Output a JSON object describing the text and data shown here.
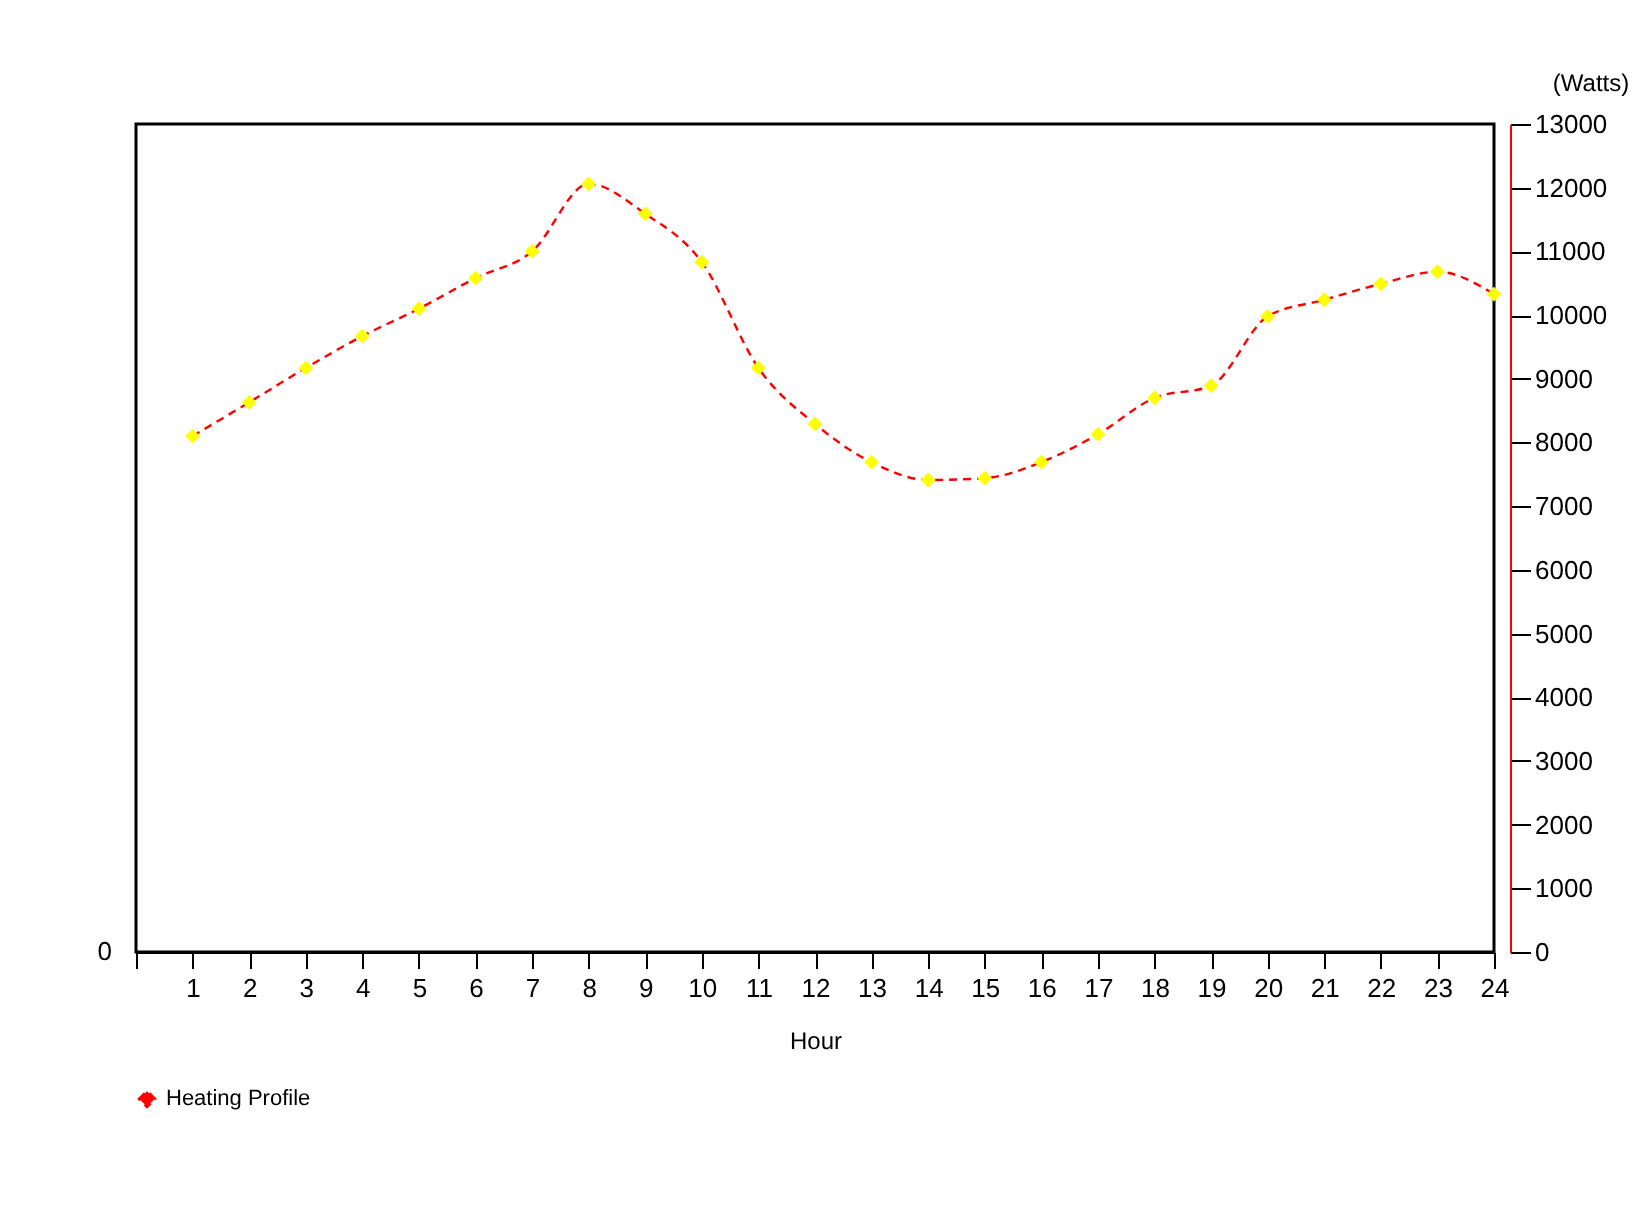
{
  "chart_data": {
    "type": "line",
    "xlabel": "Hour",
    "y2label": "(Watts)",
    "x": [
      1,
      2,
      3,
      4,
      5,
      6,
      7,
      8,
      9,
      10,
      11,
      12,
      13,
      14,
      15,
      16,
      17,
      18,
      19,
      20,
      21,
      22,
      23,
      24
    ],
    "series": [
      {
        "name": "Heating Profile",
        "color": "#ff0000",
        "axis": "y2",
        "values": [
          8100,
          8630,
          9170,
          9670,
          10100,
          10580,
          11000,
          12060,
          11590,
          10830,
          9170,
          8290,
          7690,
          7410,
          7440,
          7690,
          8130,
          8700,
          8890,
          9980,
          10240,
          10490,
          10680,
          10330
        ]
      }
    ],
    "xlim": [
      0,
      24
    ],
    "xticks": [
      {
        "value": 0,
        "label": null
      },
      1,
      2,
      3,
      4,
      5,
      6,
      7,
      8,
      9,
      10,
      11,
      12,
      13,
      14,
      15,
      16,
      17,
      18,
      19,
      20,
      21,
      22,
      23,
      24
    ],
    "annotations": [
      "0"
    ],
    "y2lim": [
      0,
      13000
    ],
    "y2ticks": [
      0,
      1000,
      2000,
      3000,
      4000,
      5000,
      6000,
      7000,
      8000,
      9000,
      10000,
      11000,
      12000,
      13000
    ],
    "grid": false,
    "legend": "bottom",
    "marker": "diamond",
    "line_style": "dashed"
  }
}
